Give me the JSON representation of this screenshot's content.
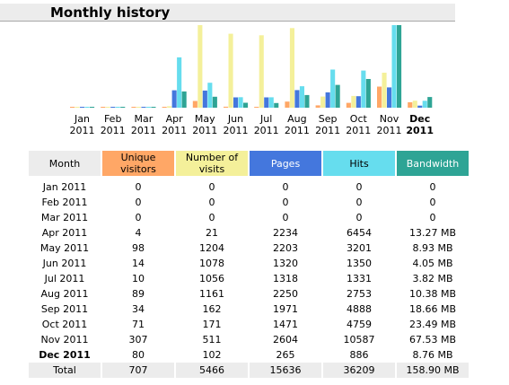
{
  "title": "Monthly history",
  "chart_data": {
    "type": "bar",
    "categories": [
      "Jan 2011",
      "Feb 2011",
      "Mar 2011",
      "Apr 2011",
      "May 2011",
      "Jun 2011",
      "Jul 2011",
      "Aug 2011",
      "Sep 2011",
      "Oct 2011",
      "Nov 2011",
      "Dec 2011"
    ],
    "month_labels": [
      "Jan",
      "Feb",
      "Mar",
      "Apr",
      "May",
      "Jun",
      "Jul",
      "Aug",
      "Sep",
      "Oct",
      "Nov",
      "Dec"
    ],
    "year_labels": [
      "2011",
      "2011",
      "2011",
      "2011",
      "2011",
      "2011",
      "2011",
      "2011",
      "2011",
      "2011",
      "2011",
      "2011"
    ],
    "highlight_month_index": 11,
    "series": [
      {
        "name": "Unique visitors",
        "color": "#ffa766",
        "values": [
          0,
          0,
          0,
          4,
          98,
          14,
          10,
          89,
          34,
          71,
          307,
          80
        ]
      },
      {
        "name": "Number of visits",
        "color": "#f4f09a",
        "values": [
          0,
          0,
          0,
          21,
          1204,
          1078,
          1056,
          1161,
          162,
          171,
          511,
          102
        ]
      },
      {
        "name": "Pages",
        "color": "#4477dd",
        "values": [
          0,
          0,
          0,
          2234,
          2203,
          1320,
          1318,
          2250,
          1971,
          1471,
          2604,
          265
        ]
      },
      {
        "name": "Hits",
        "color": "#66ddee",
        "values": [
          0,
          0,
          0,
          6454,
          3201,
          1350,
          1331,
          2753,
          4888,
          4759,
          10587,
          886
        ]
      },
      {
        "name": "Bandwidth",
        "color": "#2ea495",
        "values": [
          0,
          0,
          0,
          13.27,
          8.93,
          4.05,
          3.82,
          10.38,
          18.66,
          23.49,
          67.53,
          8.76
        ]
      }
    ]
  },
  "table": {
    "headers": {
      "month": "Month",
      "unique": "Unique visitors",
      "visits": "Number of visits",
      "pages": "Pages",
      "hits": "Hits",
      "bandwidth": "Bandwidth"
    },
    "rows": [
      {
        "month": "Jan 2011",
        "unique": "0",
        "visits": "0",
        "pages": "0",
        "hits": "0",
        "bandwidth": "0"
      },
      {
        "month": "Feb 2011",
        "unique": "0",
        "visits": "0",
        "pages": "0",
        "hits": "0",
        "bandwidth": "0"
      },
      {
        "month": "Mar 2011",
        "unique": "0",
        "visits": "0",
        "pages": "0",
        "hits": "0",
        "bandwidth": "0"
      },
      {
        "month": "Apr 2011",
        "unique": "4",
        "visits": "21",
        "pages": "2234",
        "hits": "6454",
        "bandwidth": "13.27 MB"
      },
      {
        "month": "May 2011",
        "unique": "98",
        "visits": "1204",
        "pages": "2203",
        "hits": "3201",
        "bandwidth": "8.93 MB"
      },
      {
        "month": "Jun 2011",
        "unique": "14",
        "visits": "1078",
        "pages": "1320",
        "hits": "1350",
        "bandwidth": "4.05 MB"
      },
      {
        "month": "Jul 2011",
        "unique": "10",
        "visits": "1056",
        "pages": "1318",
        "hits": "1331",
        "bandwidth": "3.82 MB"
      },
      {
        "month": "Aug 2011",
        "unique": "89",
        "visits": "1161",
        "pages": "2250",
        "hits": "2753",
        "bandwidth": "10.38 MB"
      },
      {
        "month": "Sep 2011",
        "unique": "34",
        "visits": "162",
        "pages": "1971",
        "hits": "4888",
        "bandwidth": "18.66 MB"
      },
      {
        "month": "Oct 2011",
        "unique": "71",
        "visits": "171",
        "pages": "1471",
        "hits": "4759",
        "bandwidth": "23.49 MB"
      },
      {
        "month": "Nov 2011",
        "unique": "307",
        "visits": "511",
        "pages": "2604",
        "hits": "10587",
        "bandwidth": "67.53 MB"
      },
      {
        "month": "Dec 2011",
        "unique": "80",
        "visits": "102",
        "pages": "265",
        "hits": "886",
        "bandwidth": "8.76 MB"
      }
    ],
    "total": {
      "month": "Total",
      "unique": "707",
      "visits": "5466",
      "pages": "15636",
      "hits": "36209",
      "bandwidth": "158.90 MB"
    }
  }
}
